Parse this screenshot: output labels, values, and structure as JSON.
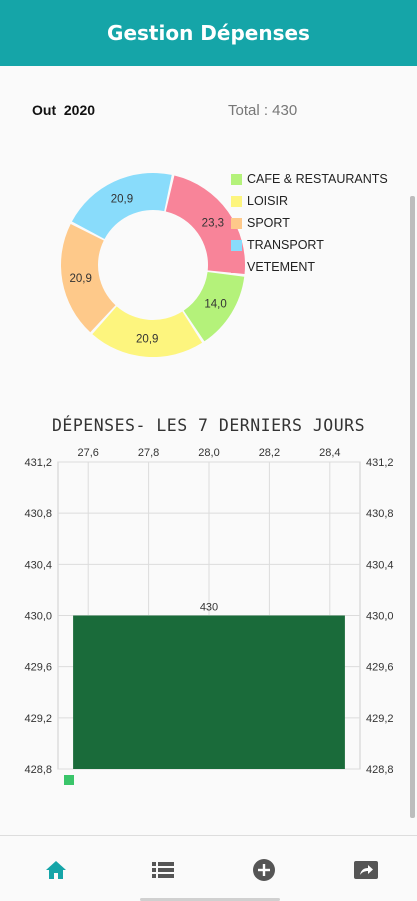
{
  "app": {
    "title": "Gestion Dépenses"
  },
  "summary": {
    "month_label": "Out  2020",
    "total_label": "Total : 430"
  },
  "colors": {
    "primary": "#15a5a8",
    "bar": "#1a6b3a",
    "nav_active": "#15a5a8",
    "nav_inactive": "#555555"
  },
  "chart_data": [
    {
      "type": "pie",
      "donut": true,
      "legend_position": "right",
      "categories": [
        "CAFE & RESTAURANTS",
        "LOISIR",
        "SPORT",
        "TRANSPORT",
        "VETEMENT"
      ],
      "slices": [
        {
          "label": "VETEMENT",
          "value": 23.3,
          "color": "#f88499"
        },
        {
          "label": "CAFE & RESTAURANTS",
          "value": 14.0,
          "color": "#b4f27a"
        },
        {
          "label": "LOISIR",
          "value": 20.9,
          "color": "#fdf57e"
        },
        {
          "label": "SPORT",
          "value": 20.9,
          "color": "#fec98a"
        },
        {
          "label": "TRANSPORT",
          "value": 20.9,
          "color": "#89dcfb"
        }
      ],
      "legend_colors": [
        "#b4f27a",
        "#fdf57e",
        "#fec98a",
        "#89dcfb",
        "#f88499"
      ],
      "value_labels": [
        "23,3",
        "14,0",
        "20,9",
        "20,9",
        "20,9"
      ]
    },
    {
      "type": "bar",
      "title": "DÉPENSES- LES 7 DERNIERS JOURS",
      "x_tick_labels": [
        "27,6",
        "27,8",
        "28,0",
        "28,2",
        "28,4"
      ],
      "x_ticks": [
        27.6,
        27.8,
        28.0,
        28.2,
        28.4
      ],
      "xlim": [
        27.5,
        28.5
      ],
      "y_tick_labels": [
        "431,2",
        "430,8",
        "430,4",
        "430,0",
        "429,6",
        "429,2",
        "428,8"
      ],
      "y_ticks": [
        431.2,
        430.8,
        430.4,
        430.0,
        429.6,
        429.2,
        428.8
      ],
      "ylim": [
        428.8,
        431.2
      ],
      "bars": [
        {
          "x": 28.0,
          "value": 430,
          "label": "430",
          "x_start": 27.55,
          "x_end": 28.45
        }
      ],
      "grid": true,
      "legend": "bottom-left"
    }
  ],
  "nav": [
    {
      "name": "home-icon",
      "active": true
    },
    {
      "name": "list-icon",
      "active": false
    },
    {
      "name": "add-circle-icon",
      "active": false
    },
    {
      "name": "share-icon",
      "active": false
    }
  ]
}
